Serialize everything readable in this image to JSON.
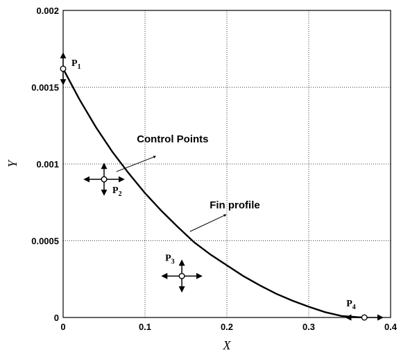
{
  "chart_data": {
    "type": "line",
    "xlabel": "X",
    "ylabel": "Y",
    "xlim": [
      0,
      0.4
    ],
    "ylim": [
      0,
      0.002
    ],
    "grid": true,
    "x_ticks": [
      "0",
      "0.1",
      "0.2",
      "0.3",
      "0.4"
    ],
    "y_ticks": [
      "0",
      "0.0005",
      "0.001",
      "0.0015",
      "0.002"
    ],
    "series": [
      {
        "x": [
          0,
          0.02,
          0.04,
          0.06,
          0.08,
          0.1,
          0.12,
          0.14,
          0.16,
          0.18,
          0.2,
          0.22,
          0.24,
          0.26,
          0.28,
          0.3,
          0.32,
          0.34,
          0.36,
          0.37
        ],
        "y": [
          0.00162,
          0.00142,
          0.00124,
          0.00108,
          0.00094,
          0.00081,
          0.000695,
          0.00059,
          0.00049,
          0.00041,
          0.00034,
          0.00027,
          0.00021,
          0.000155,
          0.00011,
          7e-05,
          3.5e-05,
          1e-05,
          2e-06,
          0
        ]
      }
    ],
    "control_points": [
      {
        "label": "P",
        "sub": "1",
        "x": 0,
        "y": 0.00162,
        "arrows": "vertical"
      },
      {
        "label": "P",
        "sub": "2",
        "x": 0.05,
        "y": 0.0009,
        "arrows": "both"
      },
      {
        "label": "P",
        "sub": "3",
        "x": 0.145,
        "y": 0.00027,
        "arrows": "both"
      },
      {
        "label": "P",
        "sub": "4",
        "x": 0.368,
        "y": 0,
        "arrows": "horizontal"
      }
    ],
    "annotations": [
      {
        "text": "Control Points",
        "x": 0.09,
        "y": 0.00114,
        "arrow_from": [
          0.065,
          0.00095
        ],
        "arrow_to": [
          0.113,
          0.00105
        ]
      },
      {
        "text": "Fin profile",
        "x": 0.179,
        "y": 0.00071,
        "arrow_from": [
          0.155,
          0.00056
        ],
        "arrow_to": [
          0.199,
          0.00067
        ]
      }
    ]
  }
}
